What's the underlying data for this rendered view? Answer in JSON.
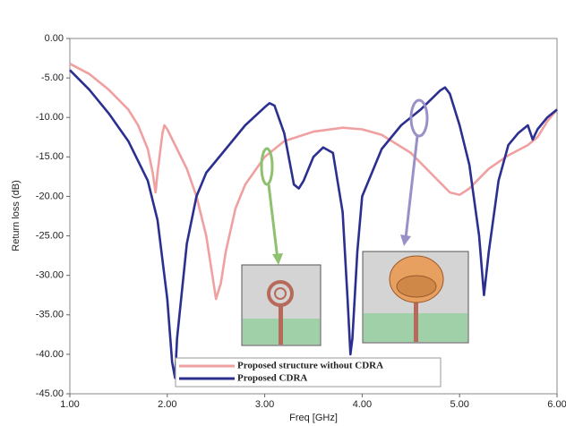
{
  "chart_data": {
    "type": "line",
    "xlabel": "Freq [GHz]",
    "ylabel": "Return loss (dB)",
    "xlim": [
      1,
      6
    ],
    "ylim": [
      -45,
      0
    ],
    "xticks": [
      {
        "value": 1,
        "label": "1.00"
      },
      {
        "value": 2,
        "label": "2.00"
      },
      {
        "value": 3,
        "label": "3.00"
      },
      {
        "value": 4,
        "label": "4.00"
      },
      {
        "value": 5,
        "label": "5.00"
      },
      {
        "value": 6,
        "label": "6.00"
      }
    ],
    "yticks": [
      {
        "value": 0,
        "label": "0.00"
      },
      {
        "value": -5,
        "label": "-5.00"
      },
      {
        "value": -10,
        "label": "-10.00"
      },
      {
        "value": -15,
        "label": "-15.00"
      },
      {
        "value": -20,
        "label": "-20.00"
      },
      {
        "value": -25,
        "label": "-25.00"
      },
      {
        "value": -30,
        "label": "-30.00"
      },
      {
        "value": -35,
        "label": "-35.00"
      },
      {
        "value": -40,
        "label": "-40.00"
      },
      {
        "value": -45,
        "label": "-45.00"
      }
    ],
    "series": [
      {
        "name": "Proposed structure without CDRA",
        "color": "#f0a0a0",
        "x": [
          1.0,
          1.2,
          1.4,
          1.6,
          1.7,
          1.8,
          1.85,
          1.88,
          1.9,
          1.95,
          1.97,
          2.0,
          2.1,
          2.2,
          2.3,
          2.4,
          2.5,
          2.55,
          2.6,
          2.7,
          2.8,
          3.0,
          3.2,
          3.5,
          3.8,
          4.0,
          4.2,
          4.5,
          4.7,
          4.9,
          5.0,
          5.1,
          5.3,
          5.5,
          5.7,
          5.8,
          5.9,
          6.0
        ],
        "values": [
          -3.2,
          -4.5,
          -6.5,
          -9,
          -11,
          -14,
          -17,
          -19.5,
          -17,
          -12,
          -11,
          -11.5,
          -14,
          -16.5,
          -20,
          -25,
          -33,
          -31,
          -27,
          -21.5,
          -18.5,
          -15,
          -13,
          -11.8,
          -11.3,
          -11.5,
          -12.2,
          -14.5,
          -17,
          -19.5,
          -19.8,
          -19,
          -16.5,
          -14.8,
          -13.5,
          -12.5,
          -10.5,
          -9
        ]
      },
      {
        "name": "Proposed CDRA",
        "color": "#2b2f8f",
        "x": [
          1.0,
          1.2,
          1.4,
          1.6,
          1.8,
          1.9,
          2.0,
          2.05,
          2.08,
          2.1,
          2.2,
          2.3,
          2.4,
          2.6,
          2.8,
          3.0,
          3.05,
          3.1,
          3.2,
          3.3,
          3.35,
          3.4,
          3.5,
          3.6,
          3.7,
          3.8,
          3.85,
          3.88,
          3.9,
          3.95,
          4.0,
          4.2,
          4.4,
          4.6,
          4.8,
          4.85,
          4.9,
          5.0,
          5.1,
          5.2,
          5.25,
          5.3,
          5.4,
          5.5,
          5.6,
          5.7,
          5.75,
          5.8,
          5.9,
          6.0
        ],
        "values": [
          -4,
          -6.5,
          -9.5,
          -13,
          -18,
          -23,
          -33,
          -41,
          -43,
          -38,
          -26,
          -20,
          -17,
          -14,
          -11,
          -8.7,
          -8.2,
          -8.5,
          -12,
          -18.5,
          -19,
          -18,
          -15,
          -13.8,
          -14.5,
          -22,
          -33,
          -40,
          -38,
          -27,
          -20,
          -14,
          -11,
          -9,
          -6.6,
          -6.2,
          -7,
          -11,
          -16,
          -25,
          -32.5,
          -27,
          -18,
          -13.5,
          -12,
          -11,
          -12.8,
          -11.5,
          -10,
          -9
        ]
      }
    ]
  }
}
